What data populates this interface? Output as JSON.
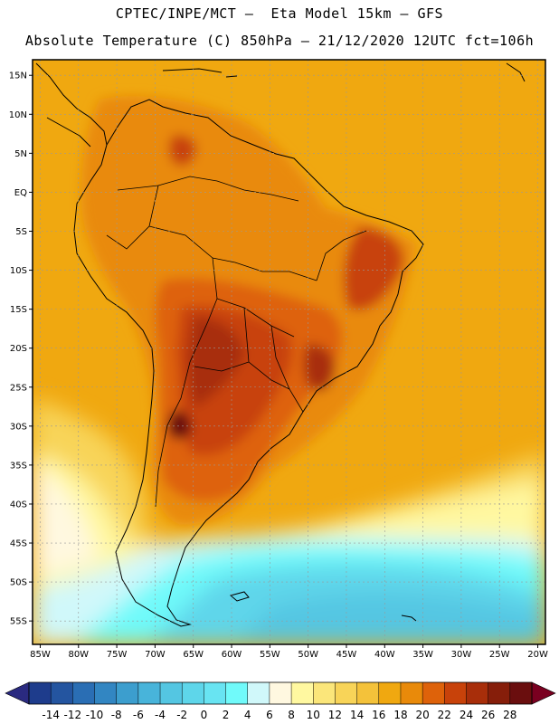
{
  "header": {
    "line1": "CPTEC/INPE/MCT –  Eta Model 15km – GFS",
    "line2": "Absolute Temperature (C) 850hPa – 21/12/2020 12UTC fct=106h"
  },
  "map": {
    "lon_range": [
      -86,
      -19
    ],
    "lat_range": [
      -58,
      17
    ],
    "lon_ticks": [
      {
        "value": -85,
        "label": "85W"
      },
      {
        "value": -80,
        "label": "80W"
      },
      {
        "value": -75,
        "label": "75W"
      },
      {
        "value": -70,
        "label": "70W"
      },
      {
        "value": -65,
        "label": "65W"
      },
      {
        "value": -60,
        "label": "60W"
      },
      {
        "value": -55,
        "label": "55W"
      },
      {
        "value": -50,
        "label": "50W"
      },
      {
        "value": -45,
        "label": "45W"
      },
      {
        "value": -40,
        "label": "40W"
      },
      {
        "value": -35,
        "label": "35W"
      },
      {
        "value": -30,
        "label": "30W"
      },
      {
        "value": -25,
        "label": "25W"
      },
      {
        "value": -20,
        "label": "20W"
      }
    ],
    "lat_ticks": [
      {
        "value": 15,
        "label": "15N"
      },
      {
        "value": 10,
        "label": "10N"
      },
      {
        "value": 5,
        "label": "5N"
      },
      {
        "value": 0,
        "label": "EQ"
      },
      {
        "value": -5,
        "label": "5S"
      },
      {
        "value": -10,
        "label": "10S"
      },
      {
        "value": -15,
        "label": "15S"
      },
      {
        "value": -20,
        "label": "20S"
      },
      {
        "value": -25,
        "label": "25S"
      },
      {
        "value": -30,
        "label": "30S"
      },
      {
        "value": -35,
        "label": "35S"
      },
      {
        "value": -40,
        "label": "40S"
      },
      {
        "value": -45,
        "label": "45S"
      },
      {
        "value": -50,
        "label": "50S"
      },
      {
        "value": -55,
        "label": "55S"
      }
    ]
  },
  "colorbar": {
    "labels": [
      "-14",
      "-12",
      "-10",
      "-8",
      "-6",
      "-4",
      "-2",
      "0",
      "2",
      "4",
      "6",
      "8",
      "10",
      "12",
      "14",
      "16",
      "18",
      "20",
      "22",
      "24",
      "26",
      "28"
    ],
    "colors": [
      "#1e3c8c",
      "#2455a0",
      "#2a6eb4",
      "#3286c2",
      "#3c9ece",
      "#48b4da",
      "#54c6e2",
      "#5ed6ea",
      "#68e4f2",
      "#70fafa",
      "#d0f8fa",
      "#fff8e0",
      "#fff8a0",
      "#fbe67a",
      "#f8d458",
      "#f4c23a",
      "#f0a810",
      "#e98a0a",
      "#de620a",
      "#c8420a",
      "#a82e0a",
      "#861e0a",
      "#6a0e0e"
    ],
    "under_color": "#2a2a80",
    "over_color": "#7a0020"
  }
}
